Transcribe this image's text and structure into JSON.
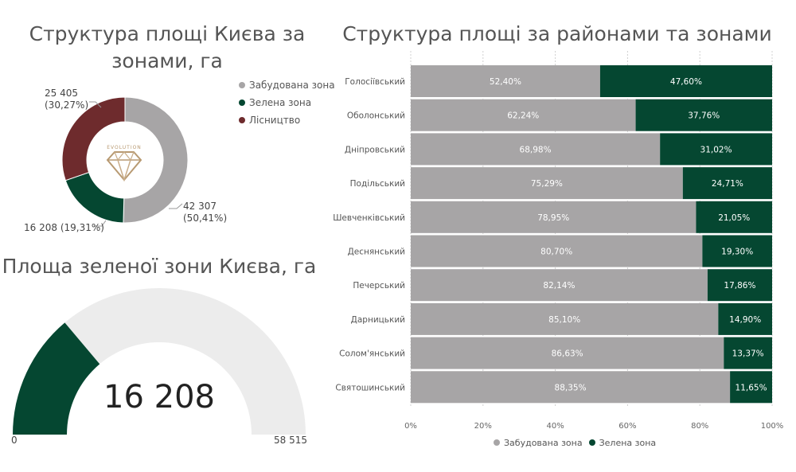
{
  "colors": {
    "built": "#a7a5a6",
    "green": "#054731",
    "forest": "#6e2b2d",
    "gauge_bg": "#ececec"
  },
  "logo_icon": "diamond-logo-icon",
  "logo_text": "EVOLUTION",
  "chart_data": [
    {
      "type": "pie",
      "title": "Структура площі Києва за зонами, га",
      "legend_position": "right",
      "slices": [
        {
          "name": "Забудована зона",
          "value": 42307,
          "value_label": "42 307",
          "pct_label": "(50,41%)"
        },
        {
          "name": "Зелена зона",
          "value": 16208,
          "value_label": "16 208",
          "pct_label": "(19,31%)"
        },
        {
          "name": "Лісництво",
          "value": 25405,
          "value_label": "25 405",
          "pct_label": "(30,27%)"
        }
      ]
    },
    {
      "type": "bar",
      "orientation": "horizontal",
      "stacked": "100%",
      "title": "Структура площі за районами та зонами",
      "categories": [
        "Голосіївський",
        "Оболонський",
        "Дніпровський",
        "Подільський",
        "Шевченківський",
        "Деснянський",
        "Печерський",
        "Дарницький",
        "Солом'янський",
        "Святошинський"
      ],
      "series": [
        {
          "name": "Забудована зона",
          "values": [
            52.4,
            62.24,
            68.98,
            75.29,
            78.95,
            80.7,
            82.14,
            85.1,
            86.63,
            88.35
          ],
          "labels": [
            "52,40%",
            "62,24%",
            "68,98%",
            "75,29%",
            "78,95%",
            "80,70%",
            "82,14%",
            "85,10%",
            "86,63%",
            "88,35%"
          ]
        },
        {
          "name": "Зелена зона",
          "values": [
            47.6,
            37.76,
            31.02,
            24.71,
            21.05,
            19.3,
            17.86,
            14.9,
            13.37,
            11.65
          ],
          "labels": [
            "47,60%",
            "37,76%",
            "31,02%",
            "24,71%",
            "21,05%",
            "19,30%",
            "17,86%",
            "14,90%",
            "13,37%",
            "11,65%"
          ]
        }
      ],
      "xlim": [
        0,
        100
      ],
      "xticks": [
        "0%",
        "20%",
        "40%",
        "60%",
        "80%",
        "100%"
      ],
      "grid": true,
      "legend_position": "bottom"
    },
    {
      "type": "gauge",
      "title": "Площа зеленої зони Києва, га",
      "value": 16208,
      "value_label": "16 208",
      "min": 0,
      "min_label": "0",
      "max": 58515,
      "max_label": "58 515"
    }
  ]
}
